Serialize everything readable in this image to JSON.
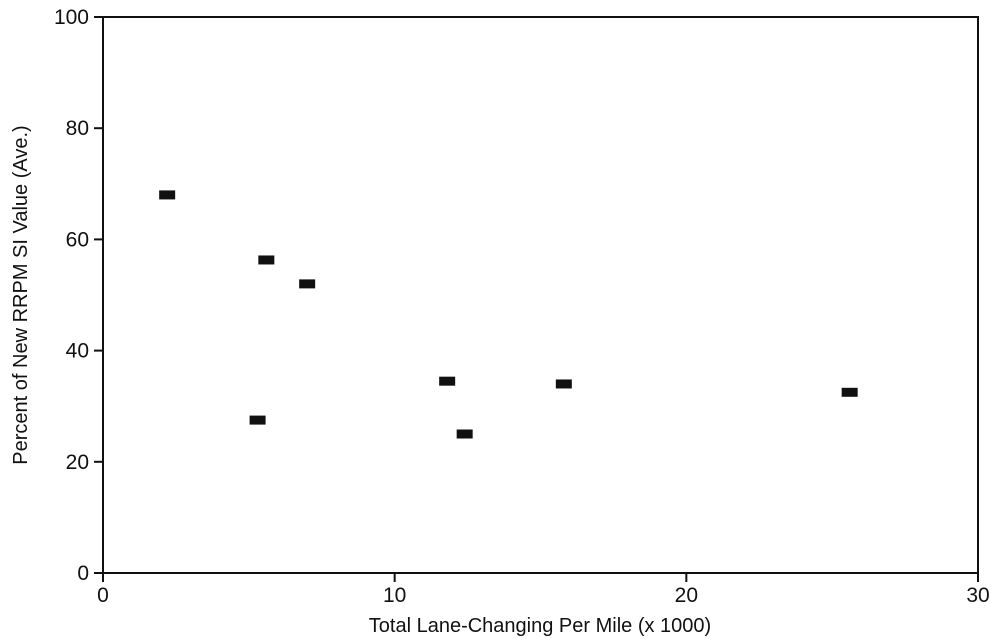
{
  "chart_data": {
    "type": "scatter",
    "title": "",
    "xlabel": "Total Lane-Changing Per Mile (x 1000)",
    "ylabel": "Percent of New RRPM SI Value (Ave.)",
    "xlim": [
      0,
      30
    ],
    "ylim": [
      0,
      100
    ],
    "xticks": [
      0,
      10,
      20,
      30
    ],
    "yticks": [
      0,
      20,
      40,
      60,
      80,
      100
    ],
    "xtick_labels": [
      "0",
      "10",
      "20",
      "30"
    ],
    "ytick_labels": [
      "0",
      "20",
      "40",
      "60",
      "80",
      "100"
    ],
    "grid": false,
    "marker": "filled-rectangle",
    "colors": {
      "marker": "#111111",
      "axis": "#111111",
      "background": "#ffffff"
    },
    "points": [
      {
        "x": 2.2,
        "y": 68
      },
      {
        "x": 5.3,
        "y": 27.5
      },
      {
        "x": 5.6,
        "y": 56.3
      },
      {
        "x": 7.0,
        "y": 52
      },
      {
        "x": 11.8,
        "y": 34.5
      },
      {
        "x": 12.4,
        "y": 25
      },
      {
        "x": 15.8,
        "y": 34
      },
      {
        "x": 25.6,
        "y": 32.5
      }
    ]
  }
}
